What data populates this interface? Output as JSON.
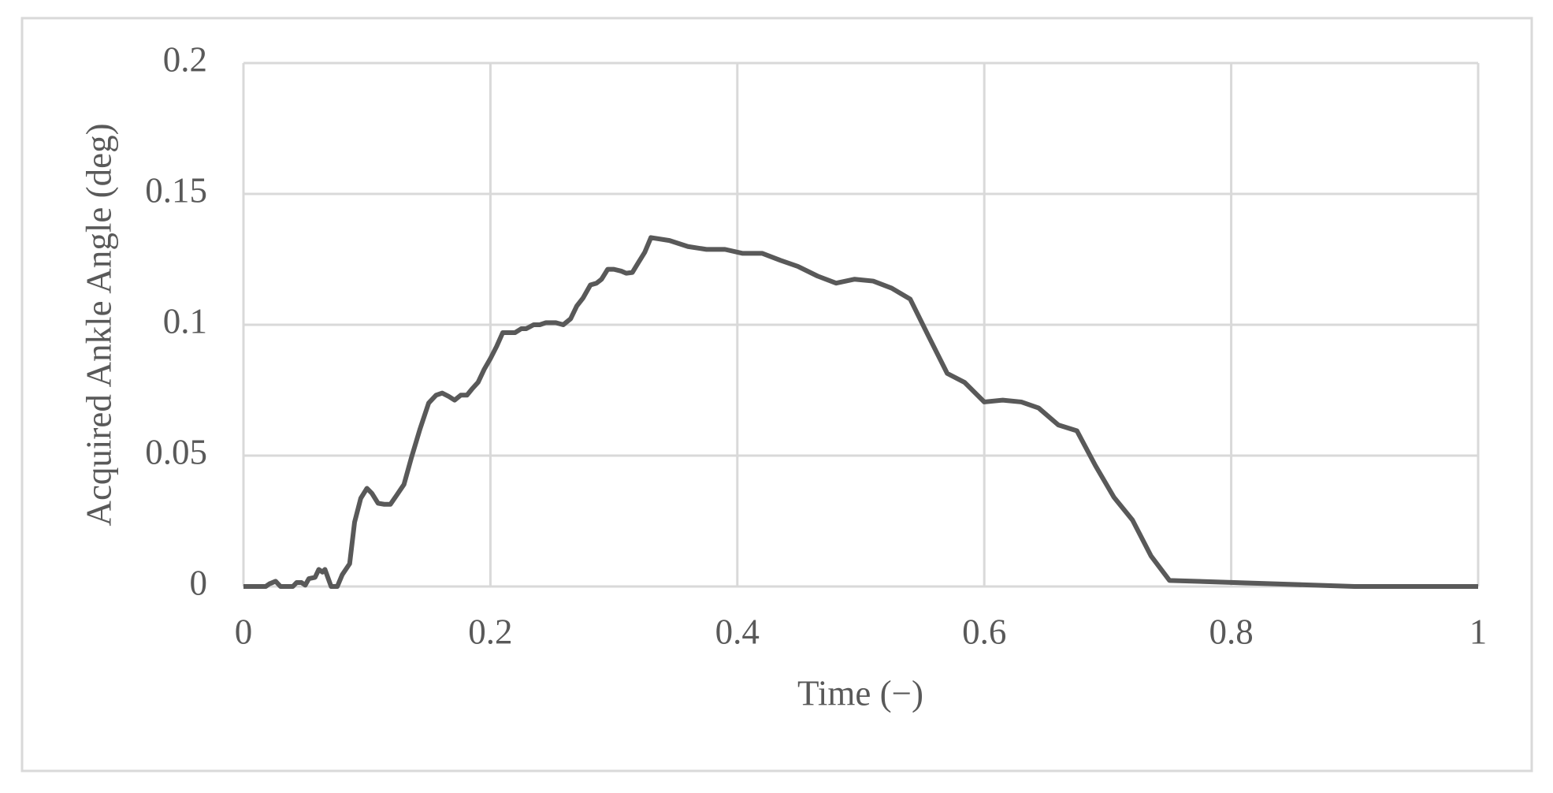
{
  "chart_data": {
    "type": "line",
    "x_label": "Time (−)",
    "y_label": "Acquired Ankle Angle (deg)",
    "x": [
      0,
      0.018,
      0.021,
      0.026,
      0.03,
      0.04,
      0.043,
      0.047,
      0.05,
      0.053,
      0.058,
      0.061,
      0.064,
      0.066,
      0.071,
      0.076,
      0.08,
      0.086,
      0.09,
      0.095,
      0.1,
      0.104,
      0.109,
      0.114,
      0.119,
      0.124,
      0.13,
      0.136,
      0.143,
      0.15,
      0.156,
      0.161,
      0.166,
      0.171,
      0.176,
      0.181,
      0.185,
      0.19,
      0.195,
      0.2,
      0.205,
      0.21,
      0.22,
      0.225,
      0.229,
      0.235,
      0.24,
      0.245,
      0.253,
      0.259,
      0.265,
      0.27,
      0.275,
      0.281,
      0.286,
      0.29,
      0.295,
      0.3,
      0.306,
      0.31,
      0.315,
      0.32,
      0.325,
      0.33,
      0.345,
      0.36,
      0.375,
      0.39,
      0.404,
      0.42,
      0.435,
      0.449,
      0.465,
      0.48,
      0.495,
      0.51,
      0.525,
      0.54,
      0.555,
      0.57,
      0.584,
      0.6,
      0.615,
      0.63,
      0.644,
      0.66,
      0.675,
      0.69,
      0.705,
      0.72,
      0.735,
      0.75,
      0.9,
      1
    ],
    "values": [
      0,
      0,
      0.001,
      0.002,
      0,
      0,
      0.0015,
      0.0015,
      0.0005,
      0.003,
      0.0035,
      0.0065,
      0.0055,
      0.0065,
      0,
      0,
      0.0045,
      0.0087,
      0.0246,
      0.0337,
      0.0375,
      0.0356,
      0.0318,
      0.0314,
      0.0314,
      0.0348,
      0.039,
      0.0492,
      0.0602,
      0.0701,
      0.0731,
      0.0739,
      0.0727,
      0.0712,
      0.0731,
      0.0731,
      0.0754,
      0.078,
      0.083,
      0.0871,
      0.0917,
      0.097,
      0.097,
      0.0985,
      0.0985,
      0.1,
      0.1,
      0.1008,
      0.1008,
      0.1,
      0.1023,
      0.1072,
      0.1102,
      0.1152,
      0.1159,
      0.1174,
      0.1212,
      0.1212,
      0.1205,
      0.1197,
      0.12,
      0.1239,
      0.1277,
      0.1333,
      0.1322,
      0.1299,
      0.1288,
      0.1288,
      0.1273,
      0.1273,
      0.1246,
      0.1223,
      0.1186,
      0.1159,
      0.1174,
      0.1167,
      0.114,
      0.1098,
      0.0955,
      0.0814,
      0.078,
      0.0705,
      0.0712,
      0.0705,
      0.0682,
      0.0617,
      0.0595,
      0.0462,
      0.0341,
      0.0254,
      0.0117,
      0.0023,
      0,
      0
    ],
    "color": "#595959",
    "xlim": [
      0,
      1
    ],
    "xticks": [
      0,
      0.2,
      0.4,
      0.6,
      0.8,
      1
    ],
    "ylim": [
      0,
      0.2
    ],
    "yticks": [
      0,
      0.05,
      0.1,
      0.15,
      0.2
    ],
    "grid": true
  }
}
